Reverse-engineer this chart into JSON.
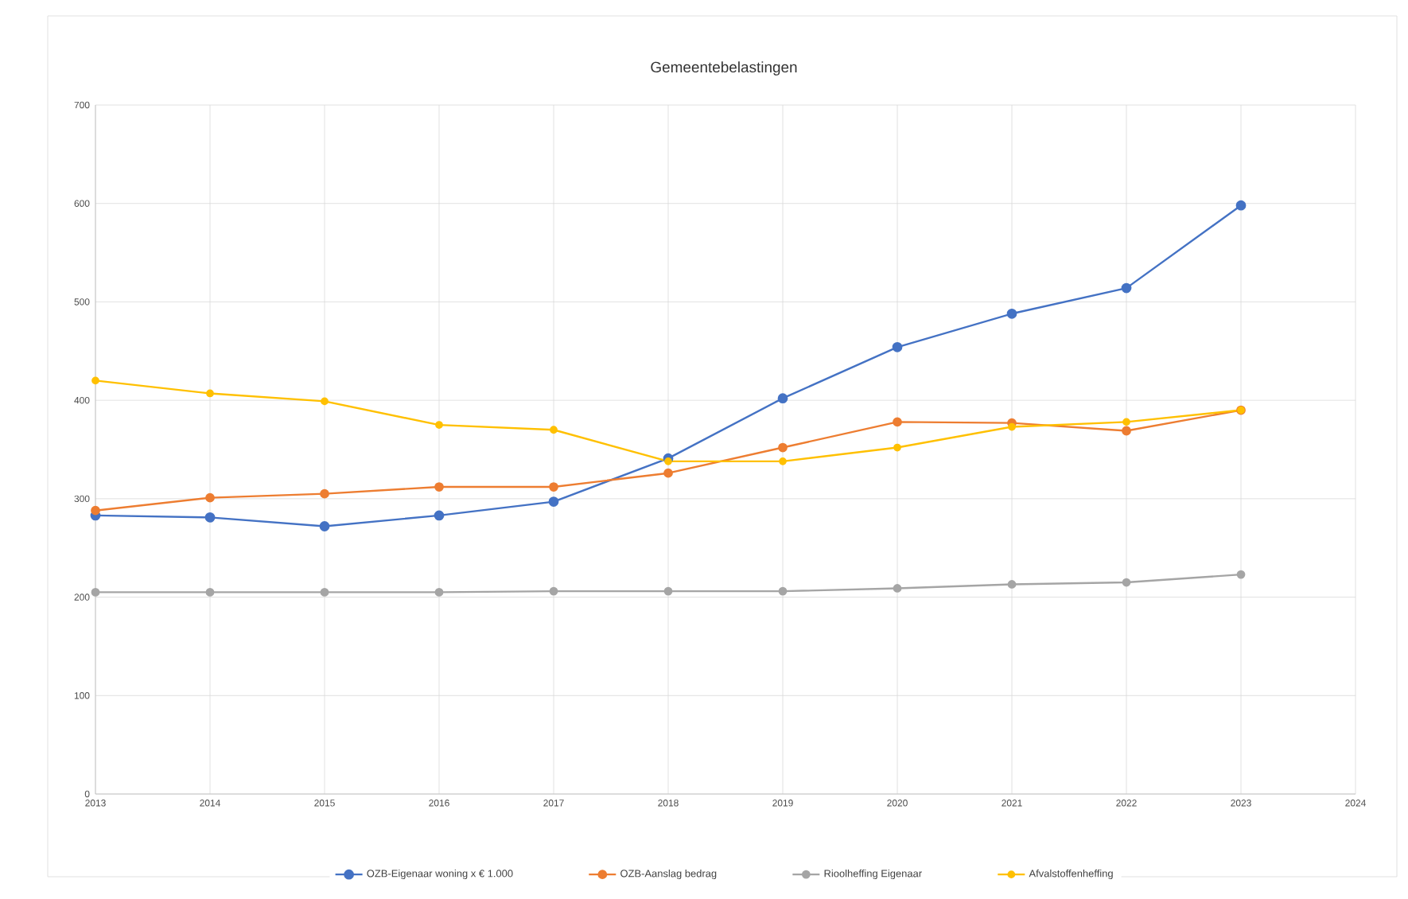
{
  "chart_data": {
    "type": "line",
    "title": "Gemeentebelastingen",
    "x": [
      2013,
      2014,
      2015,
      2016,
      2017,
      2018,
      2019,
      2020,
      2021,
      2022,
      2023
    ],
    "series": [
      {
        "name": "OZB-Eigenaar  woning x € 1.000",
        "color": "#4472c4",
        "values": [
          283,
          281,
          272,
          283,
          297,
          341,
          402,
          454,
          488,
          514,
          598
        ]
      },
      {
        "name": "OZB-Aanslag bedrag",
        "color": "#ed7d31",
        "values": [
          288,
          301,
          305,
          312,
          312,
          326,
          352,
          378,
          377,
          369,
          390
        ]
      },
      {
        "name": "Rioolheffing Eigenaar",
        "color": "#a5a5a5",
        "values": [
          205,
          205,
          205,
          205,
          206,
          206,
          206,
          209,
          213,
          215,
          223
        ]
      },
      {
        "name": "Afvalstoffenheffing",
        "color": "#ffc000",
        "values": [
          420,
          407,
          399,
          375,
          370,
          338,
          338,
          352,
          373,
          378,
          390
        ]
      }
    ],
    "xlim": [
      2013,
      2024
    ],
    "xticks": [
      2013,
      2014,
      2015,
      2016,
      2017,
      2018,
      2019,
      2020,
      2021,
      2022,
      2023,
      2024
    ],
    "ylim": [
      0,
      700
    ],
    "yticks": [
      0,
      100,
      200,
      300,
      400,
      500,
      600,
      700
    ],
    "grid": true,
    "legend": "bottom",
    "marker": "circle",
    "line_style": "solid"
  }
}
